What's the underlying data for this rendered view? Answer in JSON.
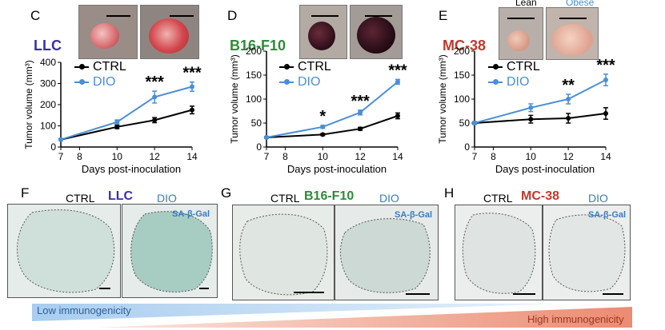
{
  "panels_top": [
    {
      "letter": "C",
      "model": "LLC",
      "model_color": "#3a2fa8",
      "photo_labels": [
        "",
        ""
      ]
    },
    {
      "letter": "D",
      "model": "B16-F10",
      "model_color": "#2e8b3a",
      "photo_labels": [
        "",
        ""
      ]
    },
    {
      "letter": "E",
      "model": "MC-38",
      "model_color": "#c0392b",
      "photo_labels": [
        "Lean",
        "Obese"
      ]
    }
  ],
  "legend": {
    "ctrl": "CTRL",
    "dio": "DIO"
  },
  "colors": {
    "ctrl": "#000000",
    "dio": "#4a8fd6",
    "lean_label": "#000000",
    "obese_label": "#4a8fd6"
  },
  "chart_data": [
    {
      "type": "line",
      "title": "LLC",
      "xlabel": "Days post-inoculation",
      "ylabel": "Tumor volume (mm³)",
      "xlim": [
        7,
        14
      ],
      "ylim": [
        0,
        400
      ],
      "x_ticks": [
        7,
        8,
        10,
        12,
        14
      ],
      "y_ticks": [
        0,
        100,
        200,
        300,
        400
      ],
      "series": [
        {
          "name": "CTRL",
          "x": [
            7,
            10,
            12,
            14
          ],
          "y": [
            35,
            95,
            127,
            175
          ],
          "err": [
            3,
            8,
            12,
            18
          ]
        },
        {
          "name": "DIO",
          "x": [
            7,
            10,
            12,
            14
          ],
          "y": [
            35,
            118,
            236,
            285
          ],
          "err": [
            3,
            10,
            28,
            22
          ]
        }
      ],
      "annotations": [
        {
          "x": 12,
          "text": "***"
        },
        {
          "x": 14,
          "text": "***"
        }
      ]
    },
    {
      "type": "line",
      "title": "B16-F10",
      "xlabel": "Days post-inoculation",
      "ylabel": "Tumor volume (mm³)",
      "xlim": [
        7,
        14
      ],
      "ylim": [
        0,
        200
      ],
      "x_ticks": [
        7,
        8,
        10,
        12,
        14
      ],
      "y_ticks": [
        0,
        50,
        100,
        150,
        200
      ],
      "series": [
        {
          "name": "CTRL",
          "x": [
            7,
            10,
            12,
            14
          ],
          "y": [
            20,
            26,
            38,
            65
          ],
          "err": [
            2,
            2,
            3,
            6
          ]
        },
        {
          "name": "DIO",
          "x": [
            7,
            10,
            12,
            14
          ],
          "y": [
            20,
            42,
            72,
            136
          ],
          "err": [
            2,
            3,
            5,
            5
          ]
        }
      ],
      "annotations": [
        {
          "x": 10,
          "text": "*"
        },
        {
          "x": 12,
          "text": "***"
        },
        {
          "x": 14,
          "text": "***"
        }
      ]
    },
    {
      "type": "line",
      "title": "MC-38",
      "xlabel": "Days post-inoculation",
      "ylabel": "Tumor volume (mm³)",
      "xlim": [
        7,
        14
      ],
      "ylim": [
        0,
        200
      ],
      "x_ticks": [
        7,
        8,
        10,
        12,
        14
      ],
      "y_ticks": [
        0,
        50,
        100,
        150,
        200
      ],
      "series": [
        {
          "name": "CTRL",
          "x": [
            7,
            10,
            12,
            14
          ],
          "y": [
            50,
            58,
            60,
            70
          ],
          "err": [
            3,
            8,
            10,
            12
          ]
        },
        {
          "name": "DIO",
          "x": [
            7,
            10,
            12,
            14
          ],
          "y": [
            50,
            82,
            100,
            140
          ],
          "err": [
            3,
            8,
            10,
            12
          ]
        }
      ],
      "annotations": [
        {
          "x": 12,
          "text": "**"
        },
        {
          "x": 14,
          "text": "***"
        }
      ]
    }
  ],
  "panels_bottom": [
    {
      "letter": "F",
      "model": "LLC",
      "model_color": "#3a2fa8",
      "ctrl": "CTRL",
      "dio": "DIO",
      "stain": "SA-β-Gal"
    },
    {
      "letter": "G",
      "model": "B16-F10",
      "model_color": "#2e8b3a",
      "ctrl": "CTRL",
      "dio": "DIO",
      "stain": "SA-β-Gal"
    },
    {
      "letter": "H",
      "model": "MC-38",
      "model_color": "#c0392b",
      "ctrl": "CTRL",
      "dio": "DIO",
      "stain": "SA-β-Gal"
    }
  ],
  "immunogenicity": {
    "low": "Low immunogenicity",
    "high": "High immunogenicity"
  }
}
